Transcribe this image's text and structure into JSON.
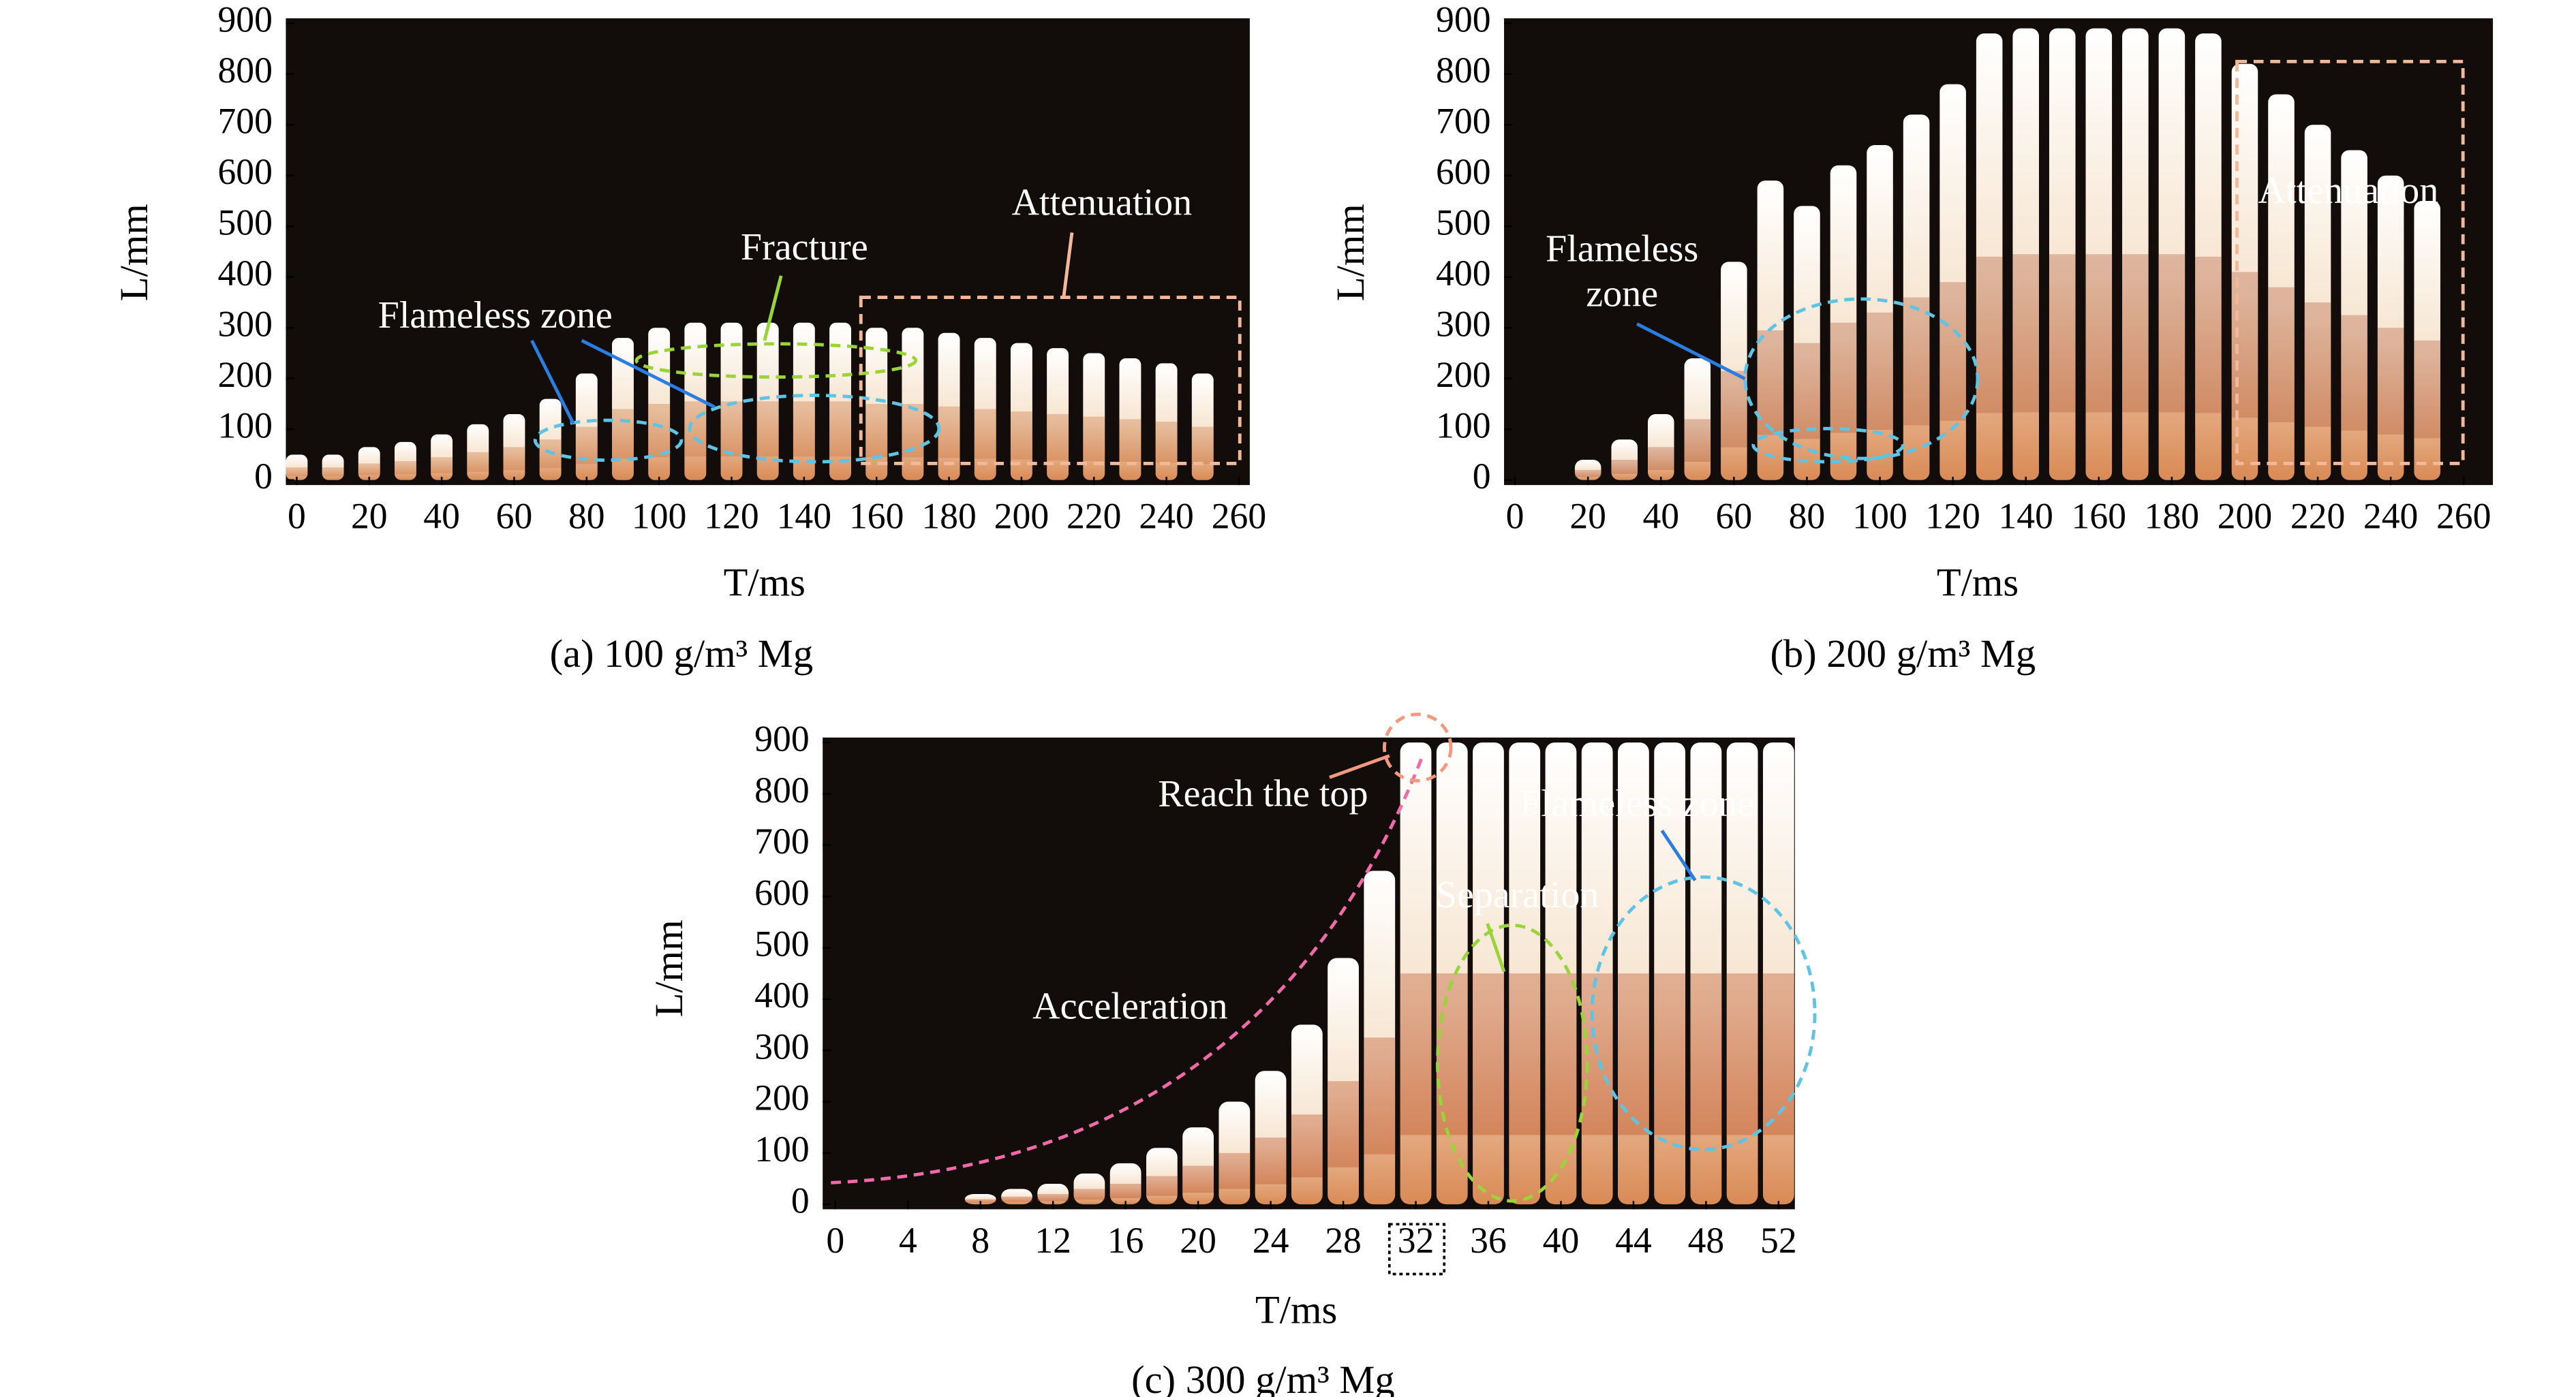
{
  "chart_data": [
    {
      "type": "bar",
      "title": "(a) 100 g/m³ Mg",
      "xlabel": "T/ms",
      "ylabel": "L/mm",
      "background": "#120d0a",
      "color": "#f7ecdf",
      "accent": "#c8703a",
      "x": [
        0,
        10,
        20,
        30,
        40,
        50,
        60,
        70,
        80,
        90,
        100,
        110,
        120,
        130,
        140,
        150,
        160,
        170,
        180,
        190,
        200,
        210,
        220,
        230,
        240,
        250
      ],
      "values": [
        50,
        50,
        65,
        75,
        90,
        110,
        130,
        160,
        210,
        280,
        300,
        310,
        310,
        310,
        310,
        310,
        300,
        300,
        290,
        280,
        270,
        260,
        250,
        240,
        230,
        210
      ],
      "xlim": [
        -3,
        263
      ],
      "ylim": [
        0,
        900
      ],
      "xticks": [
        0,
        20,
        40,
        60,
        80,
        100,
        120,
        140,
        160,
        180,
        200,
        220,
        240,
        260
      ],
      "yticks": [
        0,
        100,
        200,
        300,
        400,
        500,
        600,
        700,
        800,
        900
      ],
      "annotations": [
        "Flameless zone",
        "Fracture",
        "Attenuation"
      ]
    },
    {
      "type": "bar",
      "title": "(b) 200 g/m³ Mg",
      "xlabel": "T/ms",
      "ylabel": "L/mm",
      "background": "#120d0a",
      "color": "#f7ecdf",
      "accent": "#b0583a",
      "x": [
        20,
        30,
        40,
        50,
        60,
        70,
        80,
        90,
        100,
        110,
        120,
        130,
        140,
        150,
        160,
        170,
        180,
        190,
        200,
        210,
        220,
        230,
        240,
        250
      ],
      "values": [
        40,
        80,
        130,
        240,
        430,
        590,
        540,
        620,
        660,
        720,
        780,
        880,
        890,
        890,
        890,
        890,
        890,
        880,
        820,
        760,
        700,
        650,
        600,
        550
      ],
      "xlim": [
        -3,
        268
      ],
      "ylim": [
        0,
        900
      ],
      "xticks": [
        0,
        20,
        40,
        60,
        80,
        100,
        120,
        140,
        160,
        180,
        200,
        220,
        240,
        260
      ],
      "yticks": [
        0,
        100,
        200,
        300,
        400,
        500,
        600,
        700,
        800,
        900
      ],
      "annotations": [
        "Flameless\nzone",
        "Attenuation"
      ]
    },
    {
      "type": "bar",
      "title": "(c) 300 g/m³ Mg",
      "xlabel": "T/ms",
      "ylabel": "L/mm",
      "background": "#120d0a",
      "color": "#fbf3e8",
      "accent": "#b8461a",
      "x": [
        8,
        10,
        12,
        14,
        16,
        18,
        20,
        22,
        24,
        26,
        28,
        30,
        32,
        34,
        36,
        38,
        40,
        42,
        44,
        46,
        48,
        50,
        52
      ],
      "values": [
        20,
        30,
        40,
        60,
        80,
        110,
        150,
        200,
        260,
        350,
        480,
        650,
        900,
        900,
        900,
        900,
        900,
        900,
        900,
        900,
        900,
        900,
        900
      ],
      "xlim": [
        -0.7,
        52.9
      ],
      "ylim": [
        0,
        900
      ],
      "xticks": [
        0,
        4,
        8,
        12,
        16,
        20,
        24,
        28,
        32,
        36,
        40,
        44,
        48,
        52
      ],
      "yticks": [
        0,
        100,
        200,
        300,
        400,
        500,
        600,
        700,
        800,
        900
      ],
      "annotations": [
        "Reach the top",
        "Acceleration",
        "Separation",
        "Flameless zone"
      ]
    }
  ]
}
